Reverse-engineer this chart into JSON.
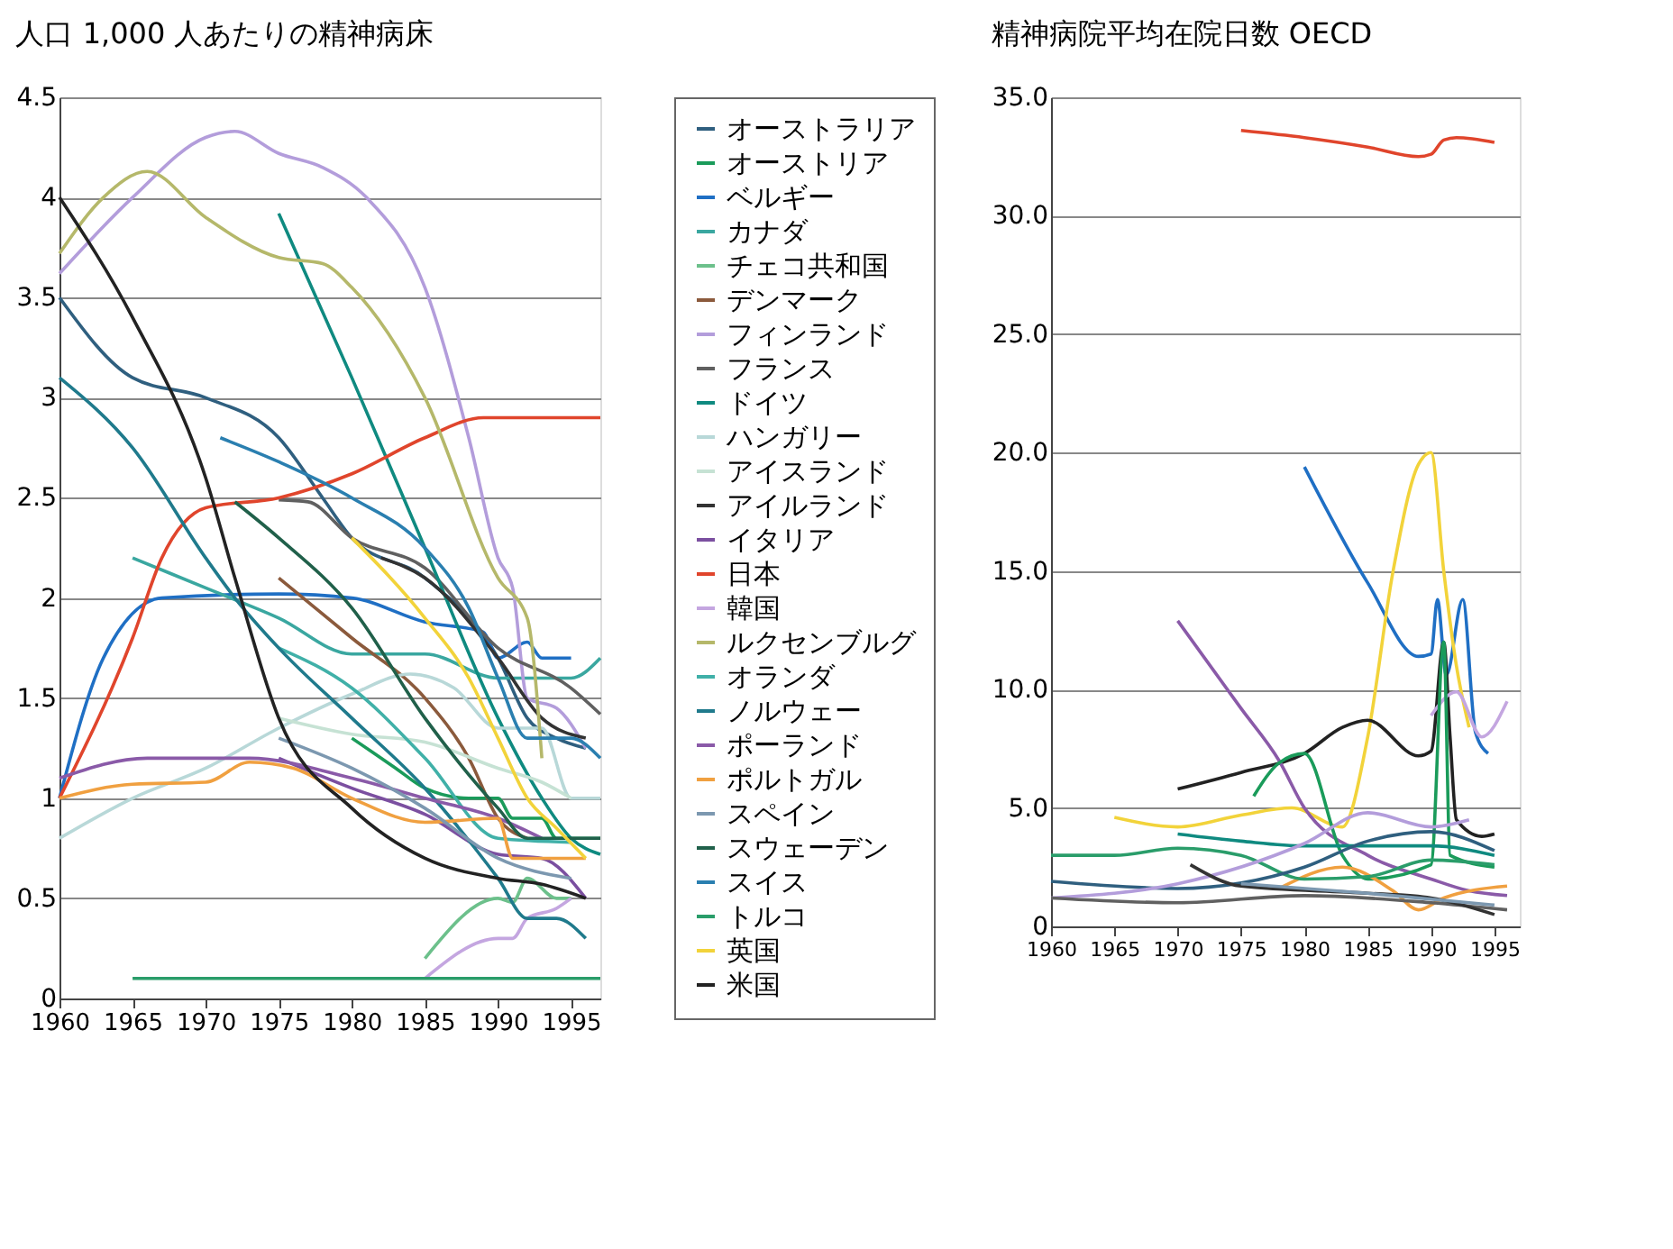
{
  "chart_data": [
    {
      "type": "line",
      "title": "人口 1,000 人あたりの精神病床",
      "xlim": [
        1960,
        1997
      ],
      "xticks": [
        1960,
        1965,
        1970,
        1975,
        1980,
        1985,
        1990,
        1995
      ],
      "ylim": [
        0,
        4.5
      ],
      "yticks": [
        0,
        0.5,
        1,
        1.5,
        2,
        2.5,
        3,
        3.5,
        4,
        4.5
      ],
      "grid": "y",
      "legend": "right",
      "line_style": "solid",
      "marker": "none",
      "series": [
        {
          "name": "オーストラリア",
          "color": "#2f5f7f",
          "x": [
            1960,
            1965,
            1970,
            1975,
            1978,
            1980,
            1985,
            1990,
            1992,
            1994,
            1996
          ],
          "values": [
            3.5,
            3.1,
            3.0,
            2.8,
            2.5,
            2.3,
            2.1,
            1.7,
            1.4,
            1.3,
            1.25
          ]
        },
        {
          "name": "オーストリア",
          "color": "#1a9b5a",
          "x": [
            1980,
            1983,
            1985,
            1988,
            1990,
            1991,
            1993,
            1994,
            1997
          ],
          "values": [
            1.3,
            1.15,
            1.05,
            1.0,
            1.0,
            0.9,
            0.9,
            0.8,
            0.8
          ]
        },
        {
          "name": "ベルギー",
          "color": "#1f6fc4",
          "x": [
            1960,
            1963,
            1967,
            1975,
            1980,
            1985,
            1989,
            1990,
            1992,
            1993,
            1995
          ],
          "values": [
            1.0,
            1.7,
            2.0,
            2.02,
            2.0,
            1.88,
            1.83,
            1.7,
            1.78,
            1.7,
            1.7
          ]
        },
        {
          "name": "カナダ",
          "color": "#3aa7a0",
          "x": [
            1965,
            1970,
            1975,
            1980,
            1985,
            1990,
            1995,
            1997
          ],
          "values": [
            2.2,
            2.05,
            1.9,
            1.72,
            1.72,
            1.6,
            1.6,
            1.7
          ]
        },
        {
          "name": "チェコ共和国",
          "color": "#6cc08b",
          "x": [
            1985,
            1990,
            1991,
            1992,
            1994,
            1995
          ],
          "values": [
            0.2,
            0.5,
            0.48,
            0.6,
            0.5,
            0.5
          ]
        },
        {
          "name": "デンマーク",
          "color": "#8b5a3c",
          "x": [
            1975,
            1980,
            1985,
            1988,
            1990,
            1992
          ],
          "values": [
            2.1,
            1.8,
            1.5,
            1.2,
            0.9,
            0.8
          ]
        },
        {
          "name": "フィンランド",
          "color": "#b39ddb",
          "x": [
            1960,
            1965,
            1970,
            1972,
            1975,
            1978,
            1981,
            1985,
            1988,
            1990,
            1991,
            1992,
            1994,
            1996
          ],
          "values": [
            3.62,
            4.0,
            4.3,
            4.33,
            4.22,
            4.15,
            4.0,
            3.55,
            2.8,
            2.2,
            2.05,
            1.5,
            1.45,
            1.25
          ]
        },
        {
          "name": "フランス",
          "color": "#606060",
          "x": [
            1975,
            1977,
            1980,
            1985,
            1990,
            1995,
            1997
          ],
          "values": [
            2.49,
            2.48,
            2.3,
            2.15,
            1.75,
            1.55,
            1.42
          ]
        },
        {
          "name": "ドイツ",
          "color": "#0f8a80",
          "x": [
            1975,
            1980,
            1985,
            1990,
            1993,
            1995,
            1997
          ],
          "values": [
            3.92,
            3.1,
            2.25,
            1.4,
            1.0,
            0.8,
            0.72
          ]
        },
        {
          "name": "ハンガリー",
          "color": "#b8d8d8",
          "x": [
            1960,
            1965,
            1970,
            1975,
            1980,
            1984,
            1987,
            1990,
            1993,
            1995,
            1997
          ],
          "values": [
            0.8,
            1.0,
            1.15,
            1.35,
            1.52,
            1.62,
            1.55,
            1.35,
            1.35,
            1.0,
            1.0
          ]
        },
        {
          "name": "アイスランド",
          "color": "#c6e2d4",
          "x": [
            1975,
            1980,
            1985,
            1990,
            1993,
            1995
          ],
          "values": [
            1.4,
            1.32,
            1.28,
            1.15,
            1.08,
            1.0
          ]
        },
        {
          "name": "アイルランド",
          "color": "#333333",
          "x": [
            1982,
            1985,
            1990,
            1993,
            1996
          ],
          "values": [
            2.2,
            2.1,
            1.7,
            1.4,
            1.3
          ]
        },
        {
          "name": "イタリア",
          "color": "#7b4fa0",
          "x": [
            1975,
            1980,
            1985,
            1990,
            1993,
            1996
          ],
          "values": [
            1.2,
            1.05,
            0.92,
            0.72,
            0.7,
            0.5
          ]
        },
        {
          "name": "日本",
          "color": "#e0452c",
          "x": [
            1960,
            1965,
            1967,
            1970,
            1975,
            1980,
            1985,
            1989,
            1997
          ],
          "values": [
            1.0,
            1.8,
            2.2,
            2.45,
            2.5,
            2.62,
            2.8,
            2.9,
            2.9
          ]
        },
        {
          "name": "韓国",
          "color": "#c4a6e0",
          "x": [
            1985,
            1990,
            1991,
            1992,
            1994,
            1995
          ],
          "values": [
            0.1,
            0.3,
            0.3,
            0.4,
            0.45,
            0.5
          ]
        },
        {
          "name": "ルクセンブルグ",
          "color": "#b5b86a",
          "x": [
            1960,
            1963,
            1966,
            1970,
            1975,
            1978,
            1980,
            1985,
            1990,
            1992,
            1993
          ],
          "values": [
            3.72,
            4.0,
            4.13,
            3.9,
            3.7,
            3.67,
            3.55,
            3.0,
            2.1,
            1.9,
            1.2
          ]
        },
        {
          "name": "オランダ",
          "color": "#40b0a8",
          "x": [
            1975,
            1980,
            1985,
            1990,
            1995
          ],
          "values": [
            1.75,
            1.55,
            1.2,
            0.8,
            0.78
          ]
        },
        {
          "name": "ノルウェー",
          "color": "#1f7a8c",
          "x": [
            1960,
            1965,
            1970,
            1972,
            1975,
            1980,
            1985,
            1990,
            1992,
            1994,
            1996
          ],
          "values": [
            3.1,
            2.75,
            2.2,
            2.0,
            1.75,
            1.4,
            1.05,
            0.6,
            0.4,
            0.4,
            0.3
          ]
        },
        {
          "name": "ポーランド",
          "color": "#8a5aa8",
          "x": [
            1960,
            1966,
            1973,
            1980,
            1985,
            1990,
            1993
          ],
          "values": [
            1.1,
            1.2,
            1.2,
            1.1,
            1.0,
            0.9,
            0.8
          ]
        },
        {
          "name": "ポルトガル",
          "color": "#f0a040",
          "x": [
            1960,
            1965,
            1970,
            1973,
            1976,
            1980,
            1985,
            1990,
            1991,
            1996
          ],
          "values": [
            1.0,
            1.07,
            1.08,
            1.18,
            1.15,
            1.0,
            0.88,
            0.9,
            0.7,
            0.7
          ]
        },
        {
          "name": "スペイン",
          "color": "#7c98b0",
          "x": [
            1975,
            1980,
            1985,
            1990,
            1995
          ],
          "values": [
            1.3,
            1.15,
            0.95,
            0.7,
            0.6
          ]
        },
        {
          "name": "スウェーデン",
          "color": "#20604a",
          "x": [
            1972,
            1975,
            1980,
            1985,
            1990,
            1992,
            1997
          ],
          "values": [
            2.48,
            2.3,
            1.95,
            1.4,
            0.95,
            0.8,
            0.8
          ]
        },
        {
          "name": "スイス",
          "color": "#2a7fb0",
          "x": [
            1971,
            1975,
            1980,
            1985,
            1988,
            1990,
            1992,
            1995,
            1997
          ],
          "values": [
            2.8,
            2.68,
            2.5,
            2.25,
            1.95,
            1.6,
            1.3,
            1.3,
            1.2
          ]
        },
        {
          "name": "トルコ",
          "color": "#2a9d6a",
          "x": [
            1965,
            1997
          ],
          "values": [
            0.1,
            0.1
          ]
        },
        {
          "name": "英国",
          "color": "#f2d33a",
          "x": [
            1980,
            1985,
            1988,
            1990,
            1992,
            1994,
            1996
          ],
          "values": [
            2.3,
            1.9,
            1.6,
            1.3,
            1.0,
            0.85,
            0.7
          ]
        },
        {
          "name": "米国",
          "color": "#222222",
          "x": [
            1960,
            1965,
            1970,
            1972,
            1975,
            1980,
            1985,
            1990,
            1993,
            1996
          ],
          "values": [
            4.0,
            3.4,
            2.6,
            2.1,
            1.4,
            0.95,
            0.7,
            0.6,
            0.57,
            0.5
          ]
        }
      ]
    },
    {
      "type": "line",
      "title": "精神病院平均在院日数 OECD",
      "xlim": [
        1960,
        1997
      ],
      "xticks": [
        1960,
        1965,
        1970,
        1975,
        1980,
        1985,
        1990,
        1995
      ],
      "ylim": [
        0,
        35
      ],
      "yticks": [
        0,
        {
          "value": 5,
          "label": "5.0"
        },
        {
          "value": 10,
          "label": "10.0"
        },
        {
          "value": 15,
          "label": "15.0"
        },
        {
          "value": 20,
          "label": "20.0"
        },
        {
          "value": 25,
          "label": "25.0"
        },
        {
          "value": 30,
          "label": "30.0"
        },
        {
          "value": 35,
          "label": "35.0"
        }
      ],
      "grid": "y",
      "line_style": "solid",
      "marker": "none",
      "series": [
        {
          "color": "#e0452c",
          "x": [
            1975,
            1980,
            1985,
            1989,
            1990,
            1991,
            1992,
            1995
          ],
          "values": [
            33.6,
            33.3,
            32.9,
            32.5,
            32.6,
            33.2,
            33.3,
            33.1
          ]
        },
        {
          "color": "#1f6fc4",
          "x": [
            1980,
            1985,
            1989,
            1990,
            1990.5,
            1991.2,
            1992.5,
            1993.5,
            1994.5
          ],
          "values": [
            19.4,
            14.5,
            11.4,
            11.5,
            13.8,
            10.6,
            13.8,
            8.2,
            7.3
          ]
        },
        {
          "color": "#f2d33a",
          "x": [
            1965,
            1970,
            1975,
            1979,
            1983,
            1985,
            1987,
            1989,
            1990,
            1991,
            1992,
            1993
          ],
          "values": [
            4.6,
            4.2,
            4.7,
            5.0,
            4.2,
            8,
            15,
            19.5,
            20.0,
            15,
            11,
            8.4
          ]
        },
        {
          "color": "#222222",
          "x": [
            1970,
            1975,
            1980,
            1983,
            1985,
            1989,
            1990,
            1991,
            1991.5,
            1992,
            1994,
            1995
          ],
          "values": [
            5.8,
            6.5,
            7.3,
            8.4,
            8.7,
            7.2,
            7.4,
            12.0,
            8,
            4.5,
            3.8,
            3.9
          ]
        },
        {
          "color": "#8a5aa8",
          "x": [
            1970,
            1975,
            1978,
            1980,
            1985,
            1990,
            1993,
            1996
          ],
          "values": [
            12.9,
            9.2,
            7,
            5.0,
            3.0,
            2.0,
            1.5,
            1.3
          ]
        },
        {
          "color": "#c4a6e0",
          "x": [
            1990,
            1992,
            1994,
            1996
          ],
          "values": [
            8.9,
            9.9,
            8.0,
            9.5
          ]
        },
        {
          "color": "#1a9b5a",
          "x": [
            1976,
            1978,
            1980,
            1983,
            1985,
            1990,
            1991,
            1991.5,
            1995
          ],
          "values": [
            5.5,
            6.9,
            7.3,
            3.0,
            2.0,
            2.6,
            12,
            3.0,
            2.5
          ]
        },
        {
          "color": "#f0a040",
          "x": [
            1978,
            1983,
            1987,
            1989,
            1991,
            1996
          ],
          "values": [
            1.6,
            2.5,
            1.5,
            0.7,
            1.2,
            1.7
          ]
        },
        {
          "color": "#2a9d6a",
          "x": [
            1960,
            1965,
            1970,
            1975,
            1980,
            1985,
            1990,
            1995
          ],
          "values": [
            3.0,
            3.0,
            3.3,
            3.0,
            2.0,
            2.1,
            2.8,
            2.6
          ]
        },
        {
          "color": "#0f8a80",
          "x": [
            1970,
            1975,
            1980,
            1990,
            1995
          ],
          "values": [
            3.9,
            3.6,
            3.4,
            3.4,
            3.0
          ]
        },
        {
          "color": "#2f5f7f",
          "x": [
            1960,
            1970,
            1980,
            1985,
            1990,
            1995
          ],
          "values": [
            1.9,
            1.6,
            2.5,
            3.6,
            4.0,
            3.2
          ]
        },
        {
          "color": "#b39ddb",
          "x": [
            1960,
            1970,
            1980,
            1985,
            1990,
            1993
          ],
          "values": [
            1.2,
            1.8,
            3.5,
            4.8,
            4.2,
            4.5
          ]
        },
        {
          "color": "#606060",
          "x": [
            1960,
            1970,
            1980,
            1990,
            1996
          ],
          "values": [
            1.2,
            1.0,
            1.3,
            1.0,
            0.7
          ]
        },
        {
          "color": "#333333",
          "x": [
            1971,
            1975,
            1985,
            1990,
            1995
          ],
          "values": [
            2.6,
            1.7,
            1.4,
            1.2,
            0.5
          ]
        },
        {
          "color": "#7c98b0",
          "x": [
            1975,
            1985,
            1995
          ],
          "values": [
            1.8,
            1.4,
            0.9
          ]
        }
      ]
    }
  ]
}
